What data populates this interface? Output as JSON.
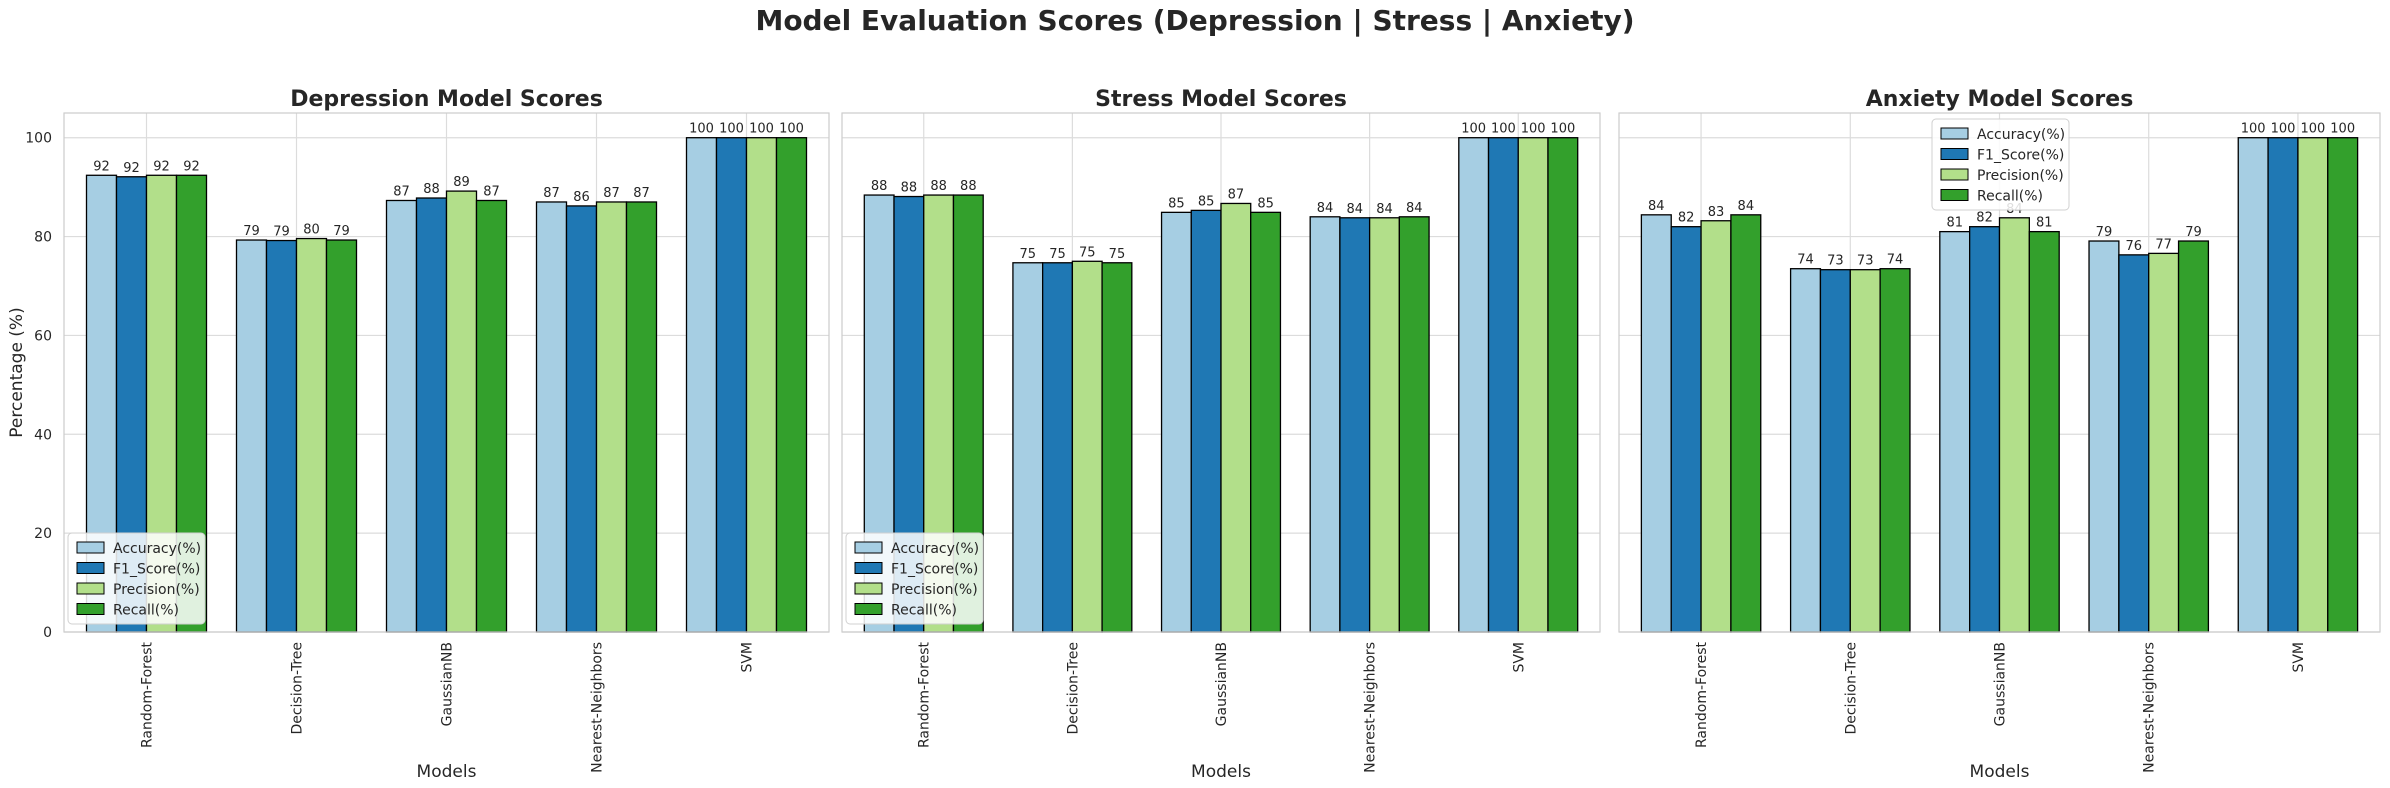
{
  "figure": {
    "suptitle": "Model Evaluation Scores (Depression | Stress | Anxiety)"
  },
  "chart_data": [
    {
      "type": "bar",
      "title": "Depression Model Scores",
      "xlabel": "Models",
      "ylabel": "Percentage (%)",
      "ylim": [
        0,
        105
      ],
      "yticks": [
        0,
        20,
        40,
        60,
        80,
        100
      ],
      "grid": true,
      "legend_position": "lower-left",
      "categories": [
        "Random-Forest",
        "Decision-Tree",
        "GaussianNB",
        "Nearest-Neighbors",
        "SVM"
      ],
      "series": [
        {
          "name": "Accuracy(%)",
          "color": "#a6cee3",
          "values": [
            92.4,
            79.3,
            87.3,
            87.0,
            100
          ],
          "labels": [
            "92",
            "79",
            "87",
            "87",
            "100"
          ]
        },
        {
          "name": "F1_Score(%)",
          "color": "#1f78b4",
          "values": [
            92.1,
            79.2,
            87.8,
            86.2,
            100
          ],
          "labels": [
            "92",
            "79",
            "88",
            "86",
            "100"
          ]
        },
        {
          "name": "Precision(%)",
          "color": "#b2df8a",
          "values": [
            92.4,
            79.6,
            89.2,
            87.0,
            100
          ],
          "labels": [
            "92",
            "80",
            "89",
            "87",
            "100"
          ]
        },
        {
          "name": "Recall(%)",
          "color": "#33a02c",
          "values": [
            92.4,
            79.3,
            87.3,
            87.0,
            100
          ],
          "labels": [
            "92",
            "79",
            "87",
            "87",
            "100"
          ]
        }
      ]
    },
    {
      "type": "bar",
      "title": "Stress Model Scores",
      "xlabel": "Models",
      "ylabel": "",
      "ylim": [
        0,
        105
      ],
      "yticks": [
        0,
        20,
        40,
        60,
        80,
        100
      ],
      "grid": true,
      "legend_position": "lower-left",
      "categories": [
        "Random-Forest",
        "Decision-Tree",
        "GaussianNB",
        "Nearest-Neighbors",
        "SVM"
      ],
      "series": [
        {
          "name": "Accuracy(%)",
          "color": "#a6cee3",
          "values": [
            88.4,
            74.7,
            84.9,
            84.0,
            100
          ],
          "labels": [
            "88",
            "75",
            "85",
            "84",
            "100"
          ]
        },
        {
          "name": "F1_Score(%)",
          "color": "#1f78b4",
          "values": [
            88.1,
            74.7,
            85.3,
            83.8,
            100
          ],
          "labels": [
            "88",
            "75",
            "85",
            "84",
            "100"
          ]
        },
        {
          "name": "Precision(%)",
          "color": "#b2df8a",
          "values": [
            88.4,
            75.0,
            86.7,
            83.8,
            100
          ],
          "labels": [
            "88",
            "75",
            "87",
            "84",
            "100"
          ]
        },
        {
          "name": "Recall(%)",
          "color": "#33a02c",
          "values": [
            88.4,
            74.7,
            84.9,
            84.0,
            100
          ],
          "labels": [
            "88",
            "75",
            "85",
            "84",
            "100"
          ]
        }
      ]
    },
    {
      "type": "bar",
      "title": "Anxiety Model Scores",
      "xlabel": "Models",
      "ylabel": "",
      "ylim": [
        0,
        105
      ],
      "yticks": [
        0,
        20,
        40,
        60,
        80,
        100
      ],
      "grid": true,
      "legend_position": "top-center",
      "categories": [
        "Random-Forest",
        "Decision-Tree",
        "GaussianNB",
        "Nearest-Neighbors",
        "SVM"
      ],
      "series": [
        {
          "name": "Accuracy(%)",
          "color": "#a6cee3",
          "values": [
            84.4,
            73.5,
            81.0,
            79.1,
            100
          ],
          "labels": [
            "84",
            "74",
            "81",
            "79",
            "100"
          ]
        },
        {
          "name": "F1_Score(%)",
          "color": "#1f78b4",
          "values": [
            82.0,
            73.3,
            82.0,
            76.3,
            100
          ],
          "labels": [
            "82",
            "73",
            "82",
            "76",
            "100"
          ]
        },
        {
          "name": "Precision(%)",
          "color": "#b2df8a",
          "values": [
            83.2,
            73.3,
            83.8,
            76.6,
            100
          ],
          "labels": [
            "83",
            "73",
            "84",
            "77",
            "100"
          ]
        },
        {
          "name": "Recall(%)",
          "color": "#33a02c",
          "values": [
            84.4,
            73.5,
            81.0,
            79.1,
            100
          ],
          "labels": [
            "84",
            "74",
            "81",
            "79",
            "100"
          ]
        }
      ]
    }
  ]
}
